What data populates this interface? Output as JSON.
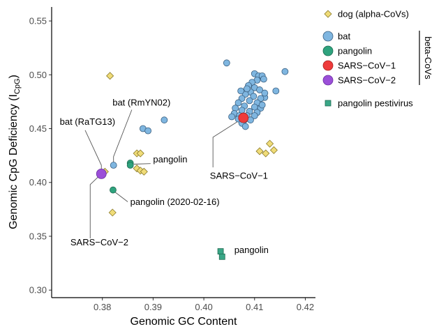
{
  "chart_data": {
    "type": "scatter",
    "xlabel": "Genomic GC Content",
    "ylabel_main": "Genomic CpG Deficiency (I",
    "ylabel_sub": "CpG",
    "ylabel_close": ")",
    "xlim": [
      0.37,
      0.422
    ],
    "ylim": [
      0.293,
      0.563
    ],
    "xticks": [
      {
        "v": 0.38,
        "label": "0.38"
      },
      {
        "v": 0.39,
        "label": "0.39"
      },
      {
        "v": 0.4,
        "label": "0.40"
      },
      {
        "v": 0.41,
        "label": "0.41"
      },
      {
        "v": 0.42,
        "label": "0.42"
      }
    ],
    "yticks": [
      {
        "v": 0.3,
        "label": "0.30"
      },
      {
        "v": 0.35,
        "label": "0.35"
      },
      {
        "v": 0.4,
        "label": "0.40"
      },
      {
        "v": 0.45,
        "label": "0.45"
      },
      {
        "v": 0.5,
        "label": "0.50"
      },
      {
        "v": 0.55,
        "label": "0.55"
      }
    ],
    "legend": {
      "group_label": "beta-CoVs",
      "entries": [
        {
          "key": "dog",
          "label": "dog (alpha-CoVs)"
        },
        {
          "key": "bat",
          "label": "bat"
        },
        {
          "key": "pangolin",
          "label": "pangolin"
        },
        {
          "key": "sars1",
          "label": "SARS−CoV−1"
        },
        {
          "key": "sars2",
          "label": "SARS−CoV−2"
        },
        {
          "key": "pestivirus",
          "label": "pangolin pestivirus"
        }
      ]
    },
    "styles": {
      "dog": {
        "shape": "diamond",
        "fill": "#f0dc78",
        "stroke": "#8a7a2a"
      },
      "bat": {
        "shape": "circle",
        "fill": "#7fb6e0",
        "stroke": "#3a5f80"
      },
      "pangolin": {
        "shape": "circle",
        "fill": "#2fa37e",
        "stroke": "#1d6a50"
      },
      "sars1": {
        "shape": "circle",
        "fill": "#ee3b3b",
        "stroke": "#a82020"
      },
      "sars2": {
        "shape": "circle",
        "fill": "#9b4fd8",
        "stroke": "#6a2fa0"
      },
      "pestivirus": {
        "shape": "square",
        "fill": "#3aa787",
        "stroke": "#1d6a50"
      }
    },
    "series": [
      {
        "key": "dog",
        "points": [
          [
            0.3815,
            0.499
          ],
          [
            0.3805,
            0.41
          ],
          [
            0.382,
            0.372
          ],
          [
            0.3868,
            0.427
          ],
          [
            0.3875,
            0.427
          ],
          [
            0.3868,
            0.413
          ],
          [
            0.3875,
            0.411
          ],
          [
            0.3882,
            0.41
          ],
          [
            0.411,
            0.429
          ],
          [
            0.4122,
            0.427
          ],
          [
            0.413,
            0.436
          ],
          [
            0.4138,
            0.43
          ]
        ]
      },
      {
        "key": "bat",
        "points": [
          [
            0.3822,
            0.416
          ],
          [
            0.388,
            0.45
          ],
          [
            0.389,
            0.448
          ],
          [
            0.3922,
            0.458
          ],
          [
            0.4045,
            0.511
          ],
          [
            0.416,
            0.503
          ],
          [
            0.4142,
            0.485
          ],
          [
            0.412,
            0.479
          ],
          [
            0.41,
            0.501
          ],
          [
            0.4108,
            0.499
          ],
          [
            0.4115,
            0.499
          ],
          [
            0.4118,
            0.496
          ],
          [
            0.4105,
            0.495
          ],
          [
            0.4095,
            0.493
          ],
          [
            0.4088,
            0.49
          ],
          [
            0.41,
            0.488
          ],
          [
            0.411,
            0.486
          ],
          [
            0.4092,
            0.484
          ],
          [
            0.4082,
            0.482
          ],
          [
            0.4098,
            0.48
          ],
          [
            0.4112,
            0.478
          ],
          [
            0.4075,
            0.478
          ],
          [
            0.409,
            0.476
          ],
          [
            0.4105,
            0.474
          ],
          [
            0.4068,
            0.474
          ],
          [
            0.408,
            0.471
          ],
          [
            0.41,
            0.47
          ],
          [
            0.4112,
            0.469
          ],
          [
            0.4062,
            0.469
          ],
          [
            0.4075,
            0.467
          ],
          [
            0.409,
            0.466
          ],
          [
            0.4105,
            0.465
          ],
          [
            0.406,
            0.464
          ],
          [
            0.407,
            0.462
          ],
          [
            0.4085,
            0.462
          ],
          [
            0.41,
            0.462
          ],
          [
            0.4055,
            0.461
          ],
          [
            0.4068,
            0.459
          ],
          [
            0.408,
            0.458
          ],
          [
            0.4092,
            0.458
          ],
          [
            0.4075,
            0.455
          ],
          [
            0.4082,
            0.452
          ],
          [
            0.4115,
            0.472
          ],
          [
            0.412,
            0.483
          ],
          [
            0.4085,
            0.487
          ],
          [
            0.4073,
            0.485
          ]
        ]
      },
      {
        "key": "pangolin",
        "points": [
          [
            0.3855,
            0.418
          ],
          [
            0.3855,
            0.416
          ],
          [
            0.3821,
            0.393
          ]
        ]
      },
      {
        "key": "sars1",
        "points": [
          [
            0.4078,
            0.46
          ]
        ]
      },
      {
        "key": "sars2",
        "points": [
          [
            0.3798,
            0.408
          ]
        ]
      },
      {
        "key": "pestivirus",
        "points": [
          [
            0.4033,
            0.336
          ],
          [
            0.4036,
            0.331
          ]
        ]
      }
    ],
    "annotations": [
      {
        "text": "bat (RmYN02)",
        "tx": 0.382,
        "ty": 0.4715,
        "anchor": "start",
        "line": [
          [
            0.3858,
            0.4675
          ],
          [
            0.3822,
            0.424
          ],
          [
            0.3822,
            0.416
          ]
        ]
      },
      {
        "text": "bat (RaTG13)",
        "tx": 0.3716,
        "ty": 0.4535,
        "anchor": "start",
        "line": [
          [
            0.3766,
            0.4485
          ],
          [
            0.3798,
            0.416
          ],
          [
            0.3798,
            0.408
          ]
        ]
      },
      {
        "text": "pangolin",
        "tx": 0.39,
        "ty": 0.4185,
        "anchor": "start",
        "line": [
          [
            0.3895,
            0.4175
          ],
          [
            0.3862,
            0.417
          ]
        ]
      },
      {
        "text": "pangolin (2020-02-16)",
        "tx": 0.3855,
        "ty": 0.379,
        "anchor": "start",
        "line": [
          [
            0.385,
            0.382
          ],
          [
            0.3825,
            0.391
          ]
        ]
      },
      {
        "text": "SARS−CoV−2",
        "tx": 0.3737,
        "ty": 0.3415,
        "anchor": "start",
        "line": [
          [
            0.3776,
            0.348
          ],
          [
            0.3776,
            0.398
          ],
          [
            0.3798,
            0.408
          ]
        ]
      },
      {
        "text": "SARS−CoV−1",
        "tx": 0.4012,
        "ty": 0.4035,
        "anchor": "start",
        "line": [
          [
            0.4018,
            0.414
          ],
          [
            0.4018,
            0.442
          ],
          [
            0.4078,
            0.46
          ]
        ]
      },
      {
        "text": "pangolin",
        "tx": 0.406,
        "ty": 0.3345,
        "anchor": "start",
        "line": null
      }
    ]
  }
}
